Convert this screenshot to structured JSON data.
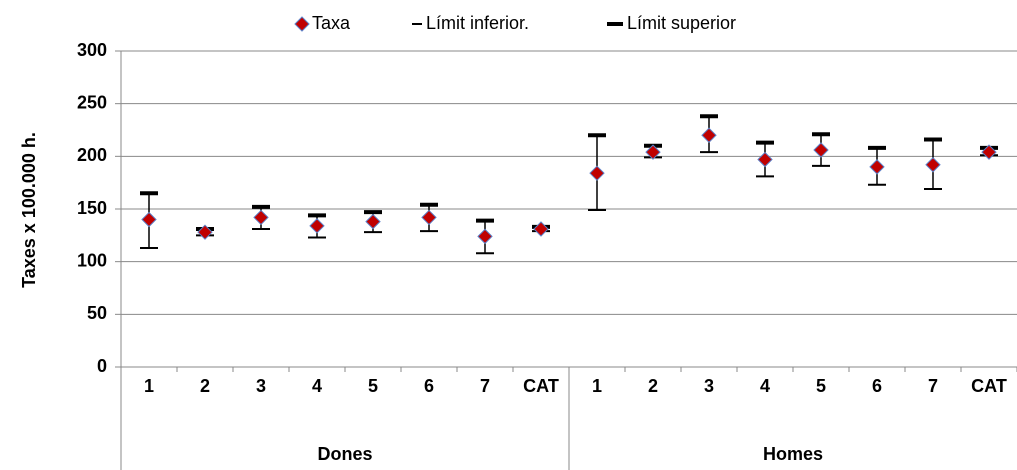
{
  "chart_data": {
    "type": "errorpoint",
    "y_label": "Taxes x 100.000 h.",
    "categories": [
      "1",
      "2",
      "3",
      "4",
      "5",
      "6",
      "7",
      "CAT",
      "1",
      "2",
      "3",
      "4",
      "5",
      "6",
      "7",
      "CAT"
    ],
    "category_groups": [
      "Dones",
      "Dones",
      "Dones",
      "Dones",
      "Dones",
      "Dones",
      "Dones",
      "Dones",
      "Homes",
      "Homes",
      "Homes",
      "Homes",
      "Homes",
      "Homes",
      "Homes",
      "Homes"
    ],
    "series": [
      {
        "name": "Taxa",
        "color": "#c00000",
        "values": [
          140,
          128,
          142,
          134,
          138,
          142,
          124,
          131,
          184,
          204,
          220,
          197,
          206,
          190,
          192,
          204
        ]
      },
      {
        "name": "Límit inferior.",
        "color": "#000000",
        "values": [
          113,
          125,
          131,
          123,
          128,
          129,
          108,
          129,
          149,
          199,
          204,
          181,
          191,
          173,
          169,
          201
        ]
      },
      {
        "name": "Límit superior",
        "color": "#000000",
        "values": [
          165,
          131,
          152,
          144,
          147,
          154,
          139,
          133,
          220,
          210,
          238,
          213,
          221,
          208,
          216,
          208
        ]
      }
    ],
    "ylim": [
      0,
      300
    ],
    "yticks": [
      0,
      50,
      100,
      150,
      200,
      250,
      300
    ],
    "grid": true
  }
}
